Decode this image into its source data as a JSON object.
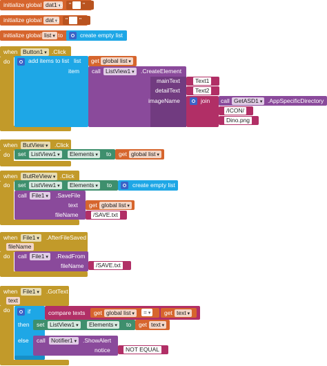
{
  "init_dat1": {
    "initialize": "initialize global",
    "name": "dat1",
    "to": "to",
    "q1": "\"",
    "q2": "\""
  },
  "init_dat": {
    "initialize": "initialize global",
    "name": "dat",
    "to": "to",
    "q1": "\"",
    "q2": "\""
  },
  "init_list": {
    "initialize": "initialize global",
    "name": "list",
    "to": "to",
    "create": "create empty list"
  },
  "button1": {
    "when": "when",
    "component": "Button1",
    "event": ".Click",
    "do": "do",
    "add": "add items to list",
    "list": "list",
    "get": "get",
    "var": "global list",
    "item": "item",
    "call": "call",
    "lv": "ListView1",
    "method": ".CreateElement",
    "mainText": "mainText",
    "detailText": "detailText",
    "imageName": "imageName",
    "text1": "Text1",
    "text2": "Text2",
    "join": "join",
    "asd_call": "call",
    "asd": "GetASD1",
    "asd_method": ".AppSpecificDirectory",
    "icon_path": "/ICON/",
    "dino": "Dino.png"
  },
  "butview": {
    "when": "when",
    "component": "ButView",
    "event": ".Click",
    "do": "do",
    "set": "set",
    "lv": "ListView1",
    "prop": "Elements",
    "to": "to",
    "get": "get",
    "var": "global list"
  },
  "butreview": {
    "when": "when",
    "component": "ButReView",
    "event": ".Click",
    "do": "do",
    "set": "set",
    "lv": "ListView1",
    "prop": "Elements",
    "to": "to",
    "create": "create empty list",
    "call": "call",
    "file": "File1",
    "method": ".SaveFile",
    "text": "text",
    "get": "get",
    "var": "global list",
    "fileName": "fileName",
    "save": "/SAVE.txt"
  },
  "aftersaved": {
    "when": "when",
    "component": "File1",
    "event": ".AfterFileSaved",
    "param": "fileName",
    "do": "do",
    "call": "call",
    "file": "File1",
    "method": ".ReadFrom",
    "fileName": "fileName",
    "save": "/SAVE.txt"
  },
  "gottext": {
    "when": "when",
    "component": "File1",
    "event": ".GotText",
    "param": "text",
    "do": "do",
    "if": "if",
    "compare": "compare texts",
    "get1": "get",
    "var1": "global list",
    "op": "=",
    "get2": "get",
    "var2": "text",
    "then": "then",
    "set": "set",
    "lv": "ListView1",
    "prop": "Elements",
    "to": "to",
    "get3": "get",
    "var3": "text",
    "else": "else",
    "call": "call",
    "notifier": "Notifier1",
    "method": ".ShowAlert",
    "notice": "notice",
    "msg": "NOT EQUAL"
  }
}
